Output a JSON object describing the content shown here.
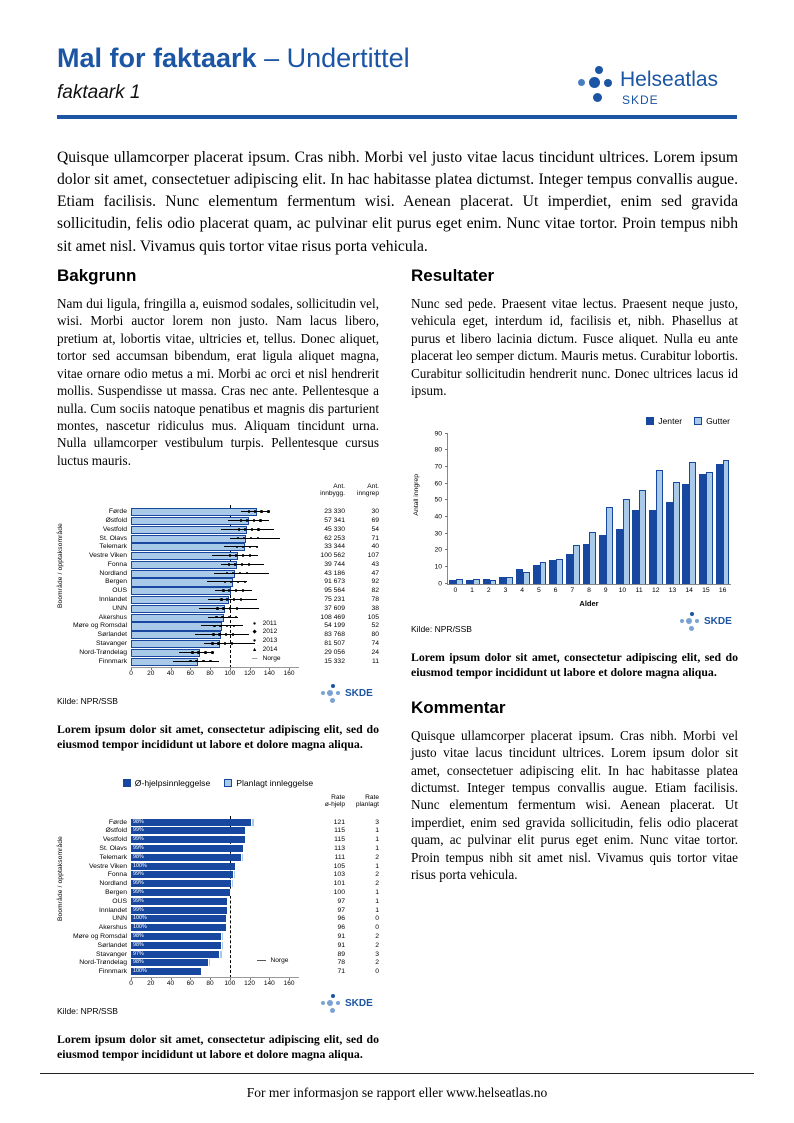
{
  "colors": {
    "brand_blue": "#1b55a3",
    "bar_dark": "#17479e",
    "bar_light": "#a9c9e9"
  },
  "header": {
    "title_bold": "Mal for faktaark",
    "title_rest": " – Undertittel",
    "doc_label": "faktaark 1",
    "logo_name": "Helseatlas",
    "logo_sub": "SKDE"
  },
  "intro": "Quisque ullamcorper placerat ipsum. Cras nibh. Morbi vel justo vitae lacus tincidunt ultrices. Lorem ipsum dolor sit amet, consectetuer adipiscing elit. In hac habitasse platea dictumst. Integer tempus convallis augue. Etiam facilisis. Nunc elementum fermentum wisi. Aenean placerat. Ut imperdiet, enim sed gravida sollicitudin, felis odio placerat quam, ac pulvinar elit purus eget enim. Nunc vitae tortor. Proin tempus nibh sit amet nisl. Vivamus quis tortor vitae risus porta vehicula.",
  "sections": {
    "bakgrunn": {
      "heading": "Bakgrunn",
      "body": "Nam dui ligula, fringilla a, euismod sodales, sollicitudin vel, wisi. Morbi auctor lorem non justo. Nam lacus libero, pretium at, lobortis vitae, ultricies et, tellus. Donec aliquet, tortor sed accumsan bibendum, erat ligula aliquet magna, vitae ornare odio metus a mi. Morbi ac orci et nisl hendrerit mollis. Suspendisse ut massa. Cras nec ante. Pellentesque a nulla. Cum sociis natoque penatibus et magnis dis parturient montes, nascetur ridiculus mus. Aliquam tincidunt urna. Nulla ullamcorper vestibulum turpis. Pellentesque cursus luctus mauris."
    },
    "resultater": {
      "heading": "Resultater",
      "body": "Nunc sed pede. Praesent vitae lectus. Praesent neque justo, vehicula eget, interdum id, facilisis et, nibh. Phasellus at purus et libero lacinia dictum. Fusce aliquet. Nulla eu ante placerat leo semper dictum. Mauris metus. Curabitur lobortis. Curabitur sollicitudin hendrerit nunc. Donec ultrices lacus id ipsum."
    },
    "kommentar": {
      "heading": "Kommentar",
      "body": "Quisque ullamcorper placerat ipsum. Cras nibh. Morbi vel justo vitae lacus tincidunt ultrices. Lorem ipsum dolor sit amet, consectetuer adipiscing elit. In hac habitasse platea dictumst. Integer tempus convallis augue. Etiam facilisis. Nunc elementum fermentum wisi. Aenean placerat. Ut imperdiet, enim sed gravida sollicitudin, felis odio placerat quam, ac pulvinar elit purus eget enim. Nunc vitae tortor. Proin tempus nibh sit amet nisl. Vivamus quis tortor vitae risus porta vehicula."
    }
  },
  "captions": {
    "chart1": "Lorem ipsum dolor sit amet, consectetur adipiscing elit, sed do eiusmod tempor incididunt ut labore et dolore magna aliqua.",
    "chart2": "Lorem ipsum dolor sit amet, consectetur adipiscing elit, sed do eiusmod tempor incididunt ut labore et dolore magna aliqua.",
    "chart3": "Lorem ipsum dolor sit amet, consectetur adipiscing elit, sed do eiusmod tempor incididunt ut labore et dolore magna aliqua."
  },
  "footer": {
    "text": "For mer informasjon se rapport eller www.helseatlas.no"
  },
  "chart_data": [
    {
      "id": "rate-per-bosted",
      "type": "bar",
      "orientation": "horizontal",
      "ylabel": "Boområde / opptaksområde",
      "xlim": [
        0,
        160
      ],
      "xticks": [
        0,
        20,
        40,
        60,
        80,
        100,
        120,
        140,
        160
      ],
      "reference_line": {
        "value": 100,
        "label": "Norge"
      },
      "legend": [
        "2011",
        "2012",
        "2013",
        "2014",
        "Norge"
      ],
      "value_columns": [
        "Ant. innbygg.",
        "Ant. inngrep"
      ],
      "source": "Kilde: NPR/SSB",
      "rows": [
        {
          "label": "Førde",
          "rate": 125,
          "innbygg": "23 330",
          "inngrep": "30"
        },
        {
          "label": "Østfold",
          "rate": 117,
          "innbygg": "57 341",
          "inngrep": "69"
        },
        {
          "label": "Vestfold",
          "rate": 115,
          "innbygg": "45 330",
          "inngrep": "54"
        },
        {
          "label": "St. Olavs",
          "rate": 114,
          "innbygg": "62 253",
          "inngrep": "71"
        },
        {
          "label": "Telemark",
          "rate": 113,
          "innbygg": "33 344",
          "inngrep": "40"
        },
        {
          "label": "Vestre Viken",
          "rate": 106,
          "innbygg": "100 562",
          "inngrep": "107"
        },
        {
          "label": "Fonna",
          "rate": 105,
          "innbygg": "39 744",
          "inngrep": "43"
        },
        {
          "label": "Nordland",
          "rate": 103,
          "innbygg": "43 186",
          "inngrep": "47"
        },
        {
          "label": "Bergen",
          "rate": 101,
          "innbygg": "91 673",
          "inngrep": "92"
        },
        {
          "label": "OUS",
          "rate": 99,
          "innbygg": "95 564",
          "inngrep": "82"
        },
        {
          "label": "Innlandet",
          "rate": 97,
          "innbygg": "75 231",
          "inngrep": "78"
        },
        {
          "label": "UNN",
          "rate": 93,
          "innbygg": "37 609",
          "inngrep": "38"
        },
        {
          "label": "Akershus",
          "rate": 92,
          "innbygg": "108 469",
          "inngrep": "105"
        },
        {
          "label": "Møre og Romsdal",
          "rate": 90,
          "innbygg": "54 199",
          "inngrep": "52"
        },
        {
          "label": "Sørlandet",
          "rate": 89,
          "innbygg": "83 768",
          "inngrep": "80"
        },
        {
          "label": "Stavanger",
          "rate": 88,
          "innbygg": "81 507",
          "inngrep": "74"
        },
        {
          "label": "Nord-Trøndelag",
          "rate": 68,
          "innbygg": "29 056",
          "inngrep": "24"
        },
        {
          "label": "Finnmark",
          "rate": 66,
          "innbygg": "15 332",
          "inngrep": "11"
        }
      ]
    },
    {
      "id": "inngrep-per-alder",
      "type": "bar",
      "orientation": "vertical",
      "xlabel": "Alder",
      "ylabel": "Antall inngrep",
      "ylim": [
        0,
        90
      ],
      "yticks": [
        0,
        10,
        20,
        30,
        40,
        50,
        60,
        70,
        80,
        90
      ],
      "categories": [
        "0",
        "1",
        "2",
        "3",
        "4",
        "5",
        "6",
        "7",
        "8",
        "9",
        "10",
        "11",
        "12",
        "13",
        "14",
        "15",
        "16"
      ],
      "series": [
        {
          "name": "Jenter",
          "color": "#17479e",
          "values": [
            2,
            2,
            3,
            4,
            9,
            11,
            14,
            18,
            24,
            29,
            33,
            44,
            44,
            49,
            60,
            66,
            72
          ]
        },
        {
          "name": "Gutter",
          "color": "#a9c9e9",
          "values": [
            3,
            3,
            2,
            4,
            7,
            13,
            15,
            23,
            31,
            46,
            51,
            56,
            68,
            61,
            73,
            67,
            74
          ]
        }
      ],
      "source": "Kilde: NPR/SSB"
    },
    {
      "id": "ohjelp-vs-planlagt",
      "type": "bar",
      "orientation": "horizontal",
      "ylabel": "Boområde / opptaksområde",
      "xlim": [
        0,
        160
      ],
      "xticks": [
        0,
        20,
        40,
        60,
        80,
        100,
        120,
        140,
        160
      ],
      "reference_line": {
        "value": 100,
        "label": "Norge"
      },
      "legend": [
        "Ø-hjelpsinnleggelse",
        "Planlagt innleggelse"
      ],
      "value_columns": [
        "Rate ø-hjelp",
        "Rate planlagt"
      ],
      "source": "Kilde: NPR/SSB",
      "rows": [
        {
          "label": "Førde",
          "pct": "98%",
          "rate_ohjelp": 121,
          "rate_planlagt": 3
        },
        {
          "label": "Østfold",
          "pct": "99%",
          "rate_ohjelp": 115,
          "rate_planlagt": 1
        },
        {
          "label": "Vestfold",
          "pct": "99%",
          "rate_ohjelp": 115,
          "rate_planlagt": 1
        },
        {
          "label": "St. Olavs",
          "pct": "99%",
          "rate_ohjelp": 113,
          "rate_planlagt": 1
        },
        {
          "label": "Telemark",
          "pct": "98%",
          "rate_ohjelp": 111,
          "rate_planlagt": 2
        },
        {
          "label": "Vestre Viken",
          "pct": "100%",
          "rate_ohjelp": 105,
          "rate_planlagt": 1
        },
        {
          "label": "Fonna",
          "pct": "99%",
          "rate_ohjelp": 103,
          "rate_planlagt": 2
        },
        {
          "label": "Nordland",
          "pct": "99%",
          "rate_ohjelp": 101,
          "rate_planlagt": 2
        },
        {
          "label": "Bergen",
          "pct": "99%",
          "rate_ohjelp": 100,
          "rate_planlagt": 1
        },
        {
          "label": "OUS",
          "pct": "99%",
          "rate_ohjelp": 97,
          "rate_planlagt": 1
        },
        {
          "label": "Innlandet",
          "pct": "99%",
          "rate_ohjelp": 97,
          "rate_planlagt": 1
        },
        {
          "label": "UNN",
          "pct": "100%",
          "rate_ohjelp": 96,
          "rate_planlagt": 0
        },
        {
          "label": "Akershus",
          "pct": "100%",
          "rate_ohjelp": 96,
          "rate_planlagt": 0
        },
        {
          "label": "Møre og Romsdal",
          "pct": "98%",
          "rate_ohjelp": 91,
          "rate_planlagt": 2
        },
        {
          "label": "Sørlandet",
          "pct": "98%",
          "rate_ohjelp": 91,
          "rate_planlagt": 2
        },
        {
          "label": "Stavanger",
          "pct": "97%",
          "rate_ohjelp": 89,
          "rate_planlagt": 3
        },
        {
          "label": "Nord-Trøndelag",
          "pct": "98%",
          "rate_ohjelp": 78,
          "rate_planlagt": 2
        },
        {
          "label": "Finnmark",
          "pct": "100%",
          "rate_ohjelp": 71,
          "rate_planlagt": 0
        }
      ]
    }
  ]
}
